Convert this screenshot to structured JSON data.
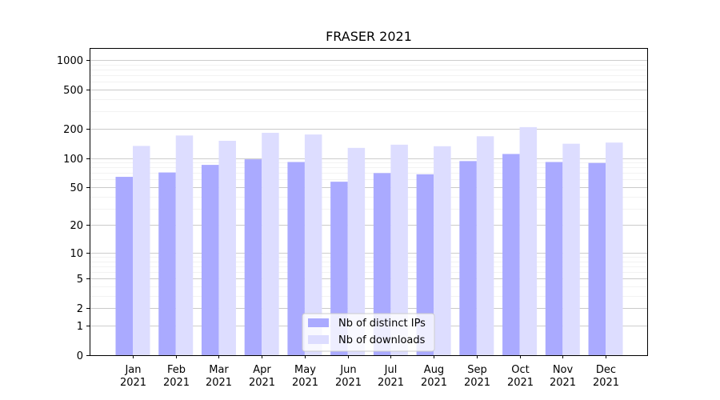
{
  "chart_data": {
    "type": "bar",
    "title": "FRASER 2021",
    "xlabel": "",
    "ylabel": "",
    "yscale": "symlog",
    "ylim": [
      0,
      1300
    ],
    "yticks": [
      0,
      1,
      2,
      5,
      10,
      20,
      50,
      100,
      200,
      500,
      1000
    ],
    "ytick_labels": [
      "0",
      "1",
      "2",
      "5",
      "10",
      "20",
      "50",
      "100",
      "200",
      "500",
      "1000"
    ],
    "categories": [
      "Jan\n2021",
      "Feb\n2021",
      "Mar\n2021",
      "Apr\n2021",
      "May\n2021",
      "Jun\n2021",
      "Jul\n2021",
      "Aug\n2021",
      "Sep\n2021",
      "Oct\n2021",
      "Nov\n2021",
      "Dec\n2021"
    ],
    "category_lines": [
      [
        "Jan",
        "2021"
      ],
      [
        "Feb",
        "2021"
      ],
      [
        "Mar",
        "2021"
      ],
      [
        "Apr",
        "2021"
      ],
      [
        "May",
        "2021"
      ],
      [
        "Jun",
        "2021"
      ],
      [
        "Jul",
        "2021"
      ],
      [
        "Aug",
        "2021"
      ],
      [
        "Sep",
        "2021"
      ],
      [
        "Oct",
        "2021"
      ],
      [
        "Nov",
        "2021"
      ],
      [
        "Dec",
        "2021"
      ]
    ],
    "series": [
      {
        "name": "Nb of distinct IPs",
        "color": "#aaaaff",
        "values": [
          64,
          71,
          85,
          97,
          91,
          57,
          70,
          68,
          93,
          110,
          91,
          89
        ]
      },
      {
        "name": "Nb of downloads",
        "color": "#ddddff",
        "values": [
          133,
          170,
          150,
          181,
          174,
          127,
          137,
          132,
          167,
          207,
          140,
          144
        ]
      }
    ],
    "grid": true,
    "legend_position": "bottom-center"
  }
}
